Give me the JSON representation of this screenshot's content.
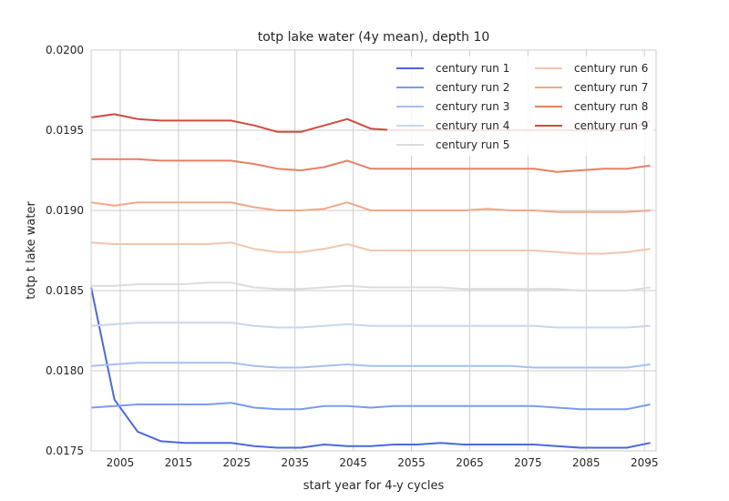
{
  "chart_data": {
    "type": "line",
    "title": "totp lake water (4y mean), depth 10",
    "xlabel": "start year for 4-y cycles",
    "ylabel": "totp t lake water",
    "xlim": [
      2000,
      2097
    ],
    "ylim": [
      0.0175,
      0.02
    ],
    "xticks": [
      2005,
      2015,
      2025,
      2035,
      2045,
      2055,
      2065,
      2075,
      2085,
      2095
    ],
    "yticks": [
      "0.0175",
      "0.0180",
      "0.0185",
      "0.0190",
      "0.0195",
      "0.0200"
    ],
    "grid": true,
    "legend": "top-right",
    "x": [
      2000,
      2004,
      2008,
      2012,
      2016,
      2020,
      2024,
      2028,
      2032,
      2036,
      2040,
      2044,
      2048,
      2052,
      2056,
      2060,
      2064,
      2068,
      2072,
      2076,
      2080,
      2084,
      2088,
      2092,
      2096
    ],
    "series": [
      {
        "name": "century run 1",
        "color": "#4b6ad8",
        "values": [
          0.01852,
          0.01782,
          0.01762,
          0.01756,
          0.01755,
          0.01755,
          0.01755,
          0.01753,
          0.01752,
          0.01752,
          0.01754,
          0.01753,
          0.01753,
          0.01754,
          0.01754,
          0.01755,
          0.01754,
          0.01754,
          0.01754,
          0.01754,
          0.01753,
          0.01752,
          0.01752,
          0.01752,
          0.01755
        ]
      },
      {
        "name": "century run 2",
        "color": "#7b9bf1",
        "values": [
          0.01777,
          0.01778,
          0.01779,
          0.01779,
          0.01779,
          0.01779,
          0.0178,
          0.01777,
          0.01776,
          0.01776,
          0.01778,
          0.01778,
          0.01777,
          0.01778,
          0.01778,
          0.01778,
          0.01778,
          0.01778,
          0.01778,
          0.01778,
          0.01777,
          0.01776,
          0.01776,
          0.01776,
          0.01779
        ]
      },
      {
        "name": "century run 3",
        "color": "#a4c0f5",
        "values": [
          0.01803,
          0.01804,
          0.01805,
          0.01805,
          0.01805,
          0.01805,
          0.01805,
          0.01803,
          0.01802,
          0.01802,
          0.01803,
          0.01804,
          0.01803,
          0.01803,
          0.01803,
          0.01803,
          0.01803,
          0.01803,
          0.01803,
          0.01802,
          0.01802,
          0.01802,
          0.01802,
          0.01802,
          0.01804
        ]
      },
      {
        "name": "century run 4",
        "color": "#c6d7ef",
        "values": [
          0.01828,
          0.01829,
          0.0183,
          0.0183,
          0.0183,
          0.0183,
          0.0183,
          0.01828,
          0.01827,
          0.01827,
          0.01828,
          0.01829,
          0.01828,
          0.01828,
          0.01828,
          0.01828,
          0.01828,
          0.01828,
          0.01828,
          0.01828,
          0.01827,
          0.01827,
          0.01827,
          0.01827,
          0.01828
        ]
      },
      {
        "name": "century run 5",
        "color": "#dcdcdc",
        "values": [
          0.01853,
          0.01853,
          0.01854,
          0.01854,
          0.01854,
          0.01855,
          0.01855,
          0.01852,
          0.01851,
          0.01851,
          0.01852,
          0.01853,
          0.01852,
          0.01852,
          0.01852,
          0.01852,
          0.01851,
          0.01851,
          0.01851,
          0.01851,
          0.01851,
          0.0185,
          0.0185,
          0.0185,
          0.01852
        ]
      },
      {
        "name": "century run 6",
        "color": "#f2c6ad",
        "values": [
          0.0188,
          0.01879,
          0.01879,
          0.01879,
          0.01879,
          0.01879,
          0.0188,
          0.01876,
          0.01874,
          0.01874,
          0.01876,
          0.01879,
          0.01875,
          0.01875,
          0.01875,
          0.01875,
          0.01875,
          0.01875,
          0.01875,
          0.01875,
          0.01874,
          0.01873,
          0.01873,
          0.01874,
          0.01876
        ]
      },
      {
        "name": "century run 7",
        "color": "#f3a889",
        "values": [
          0.01905,
          0.01903,
          0.01905,
          0.01905,
          0.01905,
          0.01905,
          0.01905,
          0.01902,
          0.019,
          0.019,
          0.01901,
          0.01905,
          0.019,
          0.019,
          0.019,
          0.019,
          0.019,
          0.01901,
          0.019,
          0.019,
          0.01899,
          0.01899,
          0.01899,
          0.01899,
          0.019
        ]
      },
      {
        "name": "century run 8",
        "color": "#e68065",
        "values": [
          0.01932,
          0.01932,
          0.01932,
          0.01931,
          0.01931,
          0.01931,
          0.01931,
          0.01929,
          0.01926,
          0.01925,
          0.01927,
          0.01931,
          0.01926,
          0.01926,
          0.01926,
          0.01926,
          0.01926,
          0.01926,
          0.01926,
          0.01926,
          0.01924,
          0.01925,
          0.01926,
          0.01926,
          0.01928
        ]
      },
      {
        "name": "century run 9",
        "color": "#cf4b3e",
        "values": [
          0.01958,
          0.0196,
          0.01957,
          0.01956,
          0.01956,
          0.01956,
          0.01956,
          0.01953,
          0.01949,
          0.01949,
          0.01953,
          0.01957,
          0.01951,
          0.0195,
          0.0195,
          0.0195,
          0.0195,
          0.0195,
          0.0195,
          0.0195,
          0.0195,
          0.0195,
          0.0195,
          0.0195,
          0.01956
        ]
      }
    ]
  }
}
